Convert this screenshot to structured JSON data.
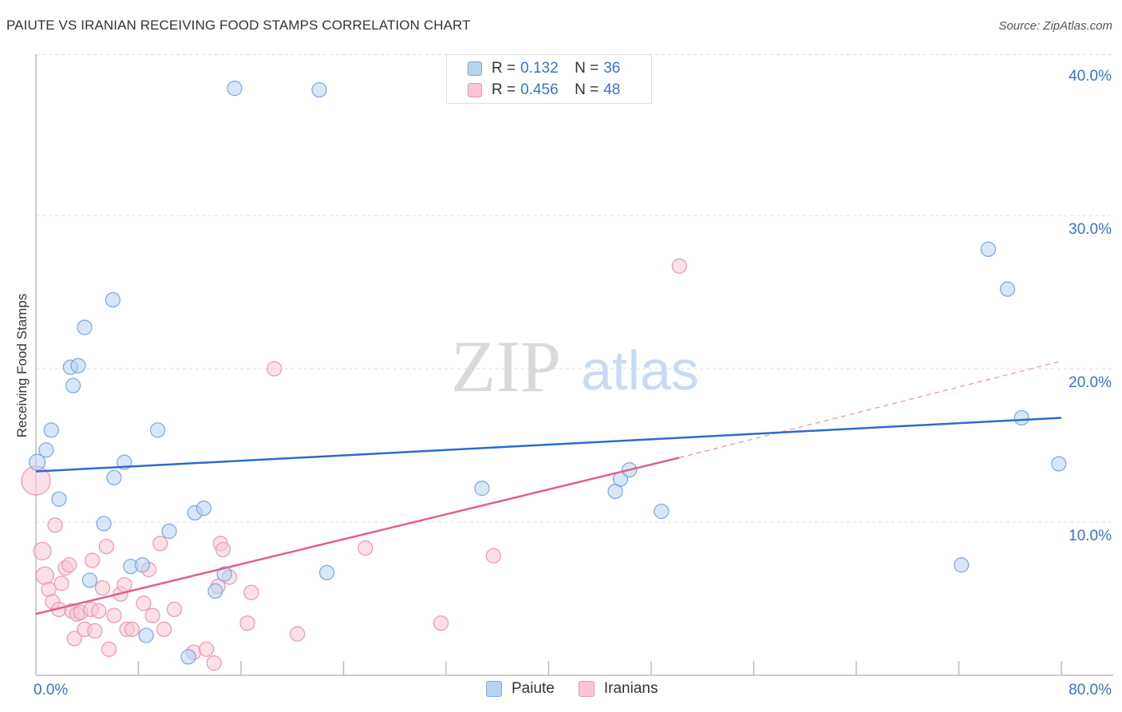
{
  "header": {
    "title": "PAIUTE VS IRANIAN RECEIVING FOOD STAMPS CORRELATION CHART",
    "source": "Source: ZipAtlas.com"
  },
  "watermark": {
    "zip": "ZIP",
    "atlas": "atlas"
  },
  "legend_top": {
    "rows": [
      {
        "r_label": "R =",
        "r_value": "0.132",
        "n_label": "N =",
        "n_value": "36"
      },
      {
        "r_label": "R =",
        "r_value": "0.456",
        "n_label": "N =",
        "n_value": "48"
      }
    ]
  },
  "legend_bottom": {
    "items": [
      "Paiute",
      "Iranians"
    ]
  },
  "colors": {
    "paiute_fill": "#b8d2f2",
    "paiute_stroke": "#7aa6de",
    "paiute_line": "#2a6ccc",
    "iranian_fill": "#f8c6d4",
    "iranian_stroke": "#e996b0",
    "iranian_line": "#e0608c",
    "tick_label": "#3a73c9",
    "grid": "#dddddd"
  },
  "chart_data": {
    "type": "scatter",
    "title": "PAIUTE VS IRANIAN RECEIVING FOOD STAMPS CORRELATION CHART",
    "xlabel": "",
    "ylabel": "Receiving Food Stamps",
    "xlim": [
      0,
      80
    ],
    "ylim": [
      0,
      41
    ],
    "x_tick_labels": [
      {
        "value": 0,
        "label": "0.0%"
      },
      {
        "value": 80,
        "label": "80.0%"
      }
    ],
    "y_tick_labels": [
      {
        "value": 10,
        "label": "10.0%"
      },
      {
        "value": 20,
        "label": "20.0%"
      },
      {
        "value": 30,
        "label": "30.0%"
      },
      {
        "value": 40,
        "label": "40.0%"
      }
    ],
    "y_grid": [
      10,
      20,
      30,
      40.5
    ],
    "series": [
      {
        "name": "Paiute",
        "r": 0.132,
        "n": 36,
        "trend": {
          "x0": 0,
          "y0": 13.3,
          "x1": 80,
          "y1": 16.8
        },
        "points": [
          [
            0.1,
            13.9,
            10
          ],
          [
            0.8,
            14.7,
            9
          ],
          [
            1.2,
            16.0,
            9
          ],
          [
            1.8,
            11.5,
            9
          ],
          [
            2.9,
            18.9,
            9
          ],
          [
            2.7,
            20.1,
            9
          ],
          [
            3.3,
            20.2,
            9
          ],
          [
            3.8,
            22.7,
            9
          ],
          [
            4.2,
            6.2,
            9
          ],
          [
            5.3,
            9.9,
            9
          ],
          [
            6.0,
            24.5,
            9
          ],
          [
            6.1,
            12.9,
            9
          ],
          [
            6.9,
            13.9,
            9
          ],
          [
            7.4,
            7.1,
            9
          ],
          [
            8.3,
            7.2,
            9
          ],
          [
            8.6,
            2.6,
            9
          ],
          [
            9.5,
            16.0,
            9
          ],
          [
            10.4,
            9.4,
            9
          ],
          [
            11.9,
            1.2,
            9
          ],
          [
            12.4,
            10.6,
            9
          ],
          [
            13.1,
            10.9,
            9
          ],
          [
            14.0,
            5.5,
            9
          ],
          [
            14.7,
            6.6,
            9
          ],
          [
            15.5,
            38.3,
            9
          ],
          [
            22.1,
            38.2,
            9
          ],
          [
            22.7,
            6.7,
            9
          ],
          [
            34.8,
            12.2,
            9
          ],
          [
            45.2,
            12.0,
            9
          ],
          [
            45.6,
            12.8,
            9
          ],
          [
            46.3,
            13.4,
            9
          ],
          [
            48.8,
            10.7,
            9
          ],
          [
            72.2,
            7.2,
            9
          ],
          [
            74.3,
            27.8,
            9
          ],
          [
            75.8,
            25.2,
            9
          ],
          [
            76.9,
            16.8,
            9
          ],
          [
            79.8,
            13.8,
            9
          ]
        ]
      },
      {
        "name": "Iranians",
        "r": 0.456,
        "n": 48,
        "trend": {
          "x0": 0,
          "y0": 4.0,
          "x1": 50.2,
          "y1": 14.2,
          "dash_x1": 80,
          "dash_y1": 20.5
        },
        "points": [
          [
            0.0,
            12.7,
            18
          ],
          [
            0.5,
            8.1,
            11
          ],
          [
            0.7,
            6.5,
            11
          ],
          [
            1.0,
            5.6,
            9
          ],
          [
            1.3,
            4.8,
            9
          ],
          [
            1.5,
            9.8,
            9
          ],
          [
            1.8,
            4.3,
            9
          ],
          [
            2.0,
            6.0,
            9
          ],
          [
            2.3,
            7.0,
            9
          ],
          [
            2.6,
            7.2,
            9
          ],
          [
            2.8,
            4.2,
            9
          ],
          [
            3.0,
            2.4,
            9
          ],
          [
            3.2,
            4.0,
            9
          ],
          [
            3.5,
            4.1,
            9
          ],
          [
            3.8,
            3.0,
            9
          ],
          [
            4.3,
            4.3,
            9
          ],
          [
            4.4,
            7.5,
            9
          ],
          [
            4.6,
            2.9,
            9
          ],
          [
            4.9,
            4.2,
            9
          ],
          [
            5.2,
            5.7,
            9
          ],
          [
            5.5,
            8.4,
            9
          ],
          [
            5.7,
            1.7,
            9
          ],
          [
            6.1,
            3.9,
            9
          ],
          [
            6.6,
            5.3,
            9
          ],
          [
            6.9,
            5.9,
            9
          ],
          [
            7.1,
            3.0,
            9
          ],
          [
            7.5,
            3.0,
            9
          ],
          [
            8.4,
            4.7,
            9
          ],
          [
            8.8,
            6.9,
            9
          ],
          [
            9.1,
            3.9,
            9
          ],
          [
            9.7,
            8.6,
            9
          ],
          [
            10.0,
            3.0,
            9
          ],
          [
            10.8,
            4.3,
            9
          ],
          [
            12.3,
            1.5,
            9
          ],
          [
            13.3,
            1.7,
            9
          ],
          [
            13.9,
            0.8,
            9
          ],
          [
            14.2,
            5.8,
            9
          ],
          [
            14.4,
            8.6,
            9
          ],
          [
            14.6,
            8.2,
            9
          ],
          [
            15.1,
            6.4,
            9
          ],
          [
            16.5,
            3.4,
            9
          ],
          [
            16.8,
            5.4,
            9
          ],
          [
            18.6,
            20.0,
            9
          ],
          [
            20.4,
            2.7,
            9
          ],
          [
            25.7,
            8.3,
            9
          ],
          [
            31.6,
            3.4,
            9
          ],
          [
            35.7,
            7.8,
            9
          ],
          [
            50.2,
            26.7,
            9
          ]
        ]
      }
    ]
  }
}
